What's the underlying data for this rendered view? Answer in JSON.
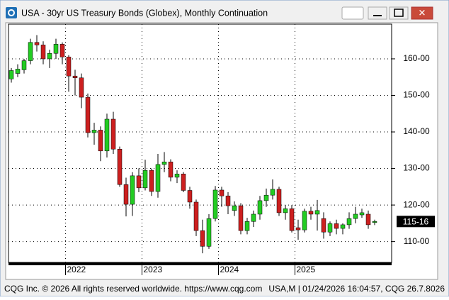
{
  "chart_data": {
    "type": "candlestick",
    "title": "USA - 30yr US Treasury Bonds (Globex), Monthly Continuation",
    "categories": [
      null,
      null,
      null,
      null,
      null,
      null,
      null,
      null,
      null,
      "2022",
      null,
      null,
      null,
      null,
      null,
      null,
      null,
      null,
      null,
      null,
      null,
      "2023",
      null,
      null,
      null,
      null,
      null,
      null,
      null,
      null,
      null,
      null,
      null,
      "2024",
      null,
      null,
      null,
      null,
      null,
      null,
      null,
      null,
      null,
      null,
      null,
      "2025",
      null,
      null,
      null,
      null,
      null,
      null,
      null,
      null,
      null,
      null,
      null,
      null
    ],
    "open": [
      154.5,
      156.0,
      157.0,
      159.5,
      164.5,
      163.8,
      160.0,
      161.5,
      164.0,
      160.5,
      155.3,
      154.8,
      149.5,
      139.8,
      140.5,
      134.8,
      143.5,
      135.3,
      125.6,
      120.2,
      128.0,
      124.7,
      129.5,
      123.7,
      131.1,
      131.8,
      127.6,
      128.5,
      124.0,
      120.8,
      113.0,
      108.7,
      116.3,
      124.1,
      122.5,
      118.5,
      119.8,
      113.0,
      115.5,
      117.5,
      121.2,
      122.7,
      124.3,
      117.9,
      119.0,
      113.8,
      113.2,
      118.3,
      117.5,
      116.3,
      112.6,
      114.9,
      113.6,
      114.6,
      116.3,
      117.3,
      117.5,
      115.2
    ],
    "high": [
      157.5,
      158.5,
      160.0,
      165.5,
      166.5,
      164.8,
      162.5,
      165.5,
      164.5,
      161.0,
      157.0,
      156.0,
      150.5,
      142.5,
      141.5,
      145.0,
      145.5,
      136.0,
      127.5,
      129.0,
      130.0,
      132.4,
      130.0,
      134.0,
      134.5,
      132.5,
      129.5,
      129.0,
      125.0,
      121.5,
      116.0,
      117.5,
      125.2,
      125.0,
      123.5,
      121.0,
      120.5,
      116.5,
      118.5,
      122.5,
      124.5,
      127.0,
      125.0,
      120.0,
      120.0,
      116.0,
      119.0,
      119.5,
      121.4,
      118.0,
      115.5,
      116.0,
      115.0,
      118.0,
      119.5,
      119.0,
      118.5,
      116.0
    ],
    "low": [
      153.5,
      155.0,
      156.0,
      158.5,
      162.0,
      158.5,
      157.5,
      160.0,
      158.5,
      151.0,
      150.0,
      146.5,
      138.5,
      136.5,
      132.0,
      133.0,
      134.0,
      125.0,
      116.9,
      117.0,
      123.5,
      124.0,
      122.5,
      122.0,
      129.0,
      126.5,
      126.0,
      123.5,
      119.0,
      111.5,
      106.8,
      108.0,
      115.5,
      119.5,
      117.5,
      117.0,
      112.0,
      112.0,
      114.0,
      116.0,
      119.5,
      121.5,
      117.0,
      116.0,
      112.5,
      110.5,
      112.5,
      116.0,
      113.0,
      110.8,
      111.5,
      112.0,
      112.0,
      113.5,
      115.0,
      116.5,
      113.5,
      114.5
    ],
    "close": [
      156.8,
      157.2,
      159.5,
      164.5,
      163.8,
      160.0,
      161.5,
      164.0,
      160.5,
      155.3,
      154.8,
      149.5,
      139.8,
      140.5,
      134.8,
      143.5,
      135.3,
      125.6,
      120.2,
      128.0,
      124.7,
      129.5,
      123.7,
      131.1,
      131.8,
      127.6,
      128.5,
      124.0,
      120.8,
      113.0,
      108.7,
      116.3,
      124.1,
      122.5,
      119.8,
      119.8,
      113.0,
      115.5,
      117.5,
      121.2,
      122.7,
      124.3,
      117.9,
      119.0,
      113.0,
      113.2,
      118.3,
      117.5,
      118.5,
      112.6,
      114.9,
      113.6,
      114.6,
      116.3,
      117.5,
      117.9,
      114.6,
      115.5
    ],
    "up_color": "#22cc22",
    "down_color": "#cc1f1f",
    "ylim": [
      104.3,
      169.5
    ],
    "yticks": [
      {
        "value": 110,
        "label": "110-00"
      },
      {
        "value": 120,
        "label": "120-00"
      },
      {
        "value": 130,
        "label": "130-00"
      },
      {
        "value": 140,
        "label": "140-00"
      },
      {
        "value": 150,
        "label": "150-00"
      },
      {
        "value": 160,
        "label": "160-00"
      }
    ],
    "last_price": {
      "value": 115.5,
      "label": "115-16"
    },
    "grid": true
  },
  "footer_left": "CQG Inc. © 2026 All rights reserved worldwide. https://www.cqg.com",
  "footer_right": "USA,M | 01/24/2026 16:04:57, CQG 26.7.8026"
}
